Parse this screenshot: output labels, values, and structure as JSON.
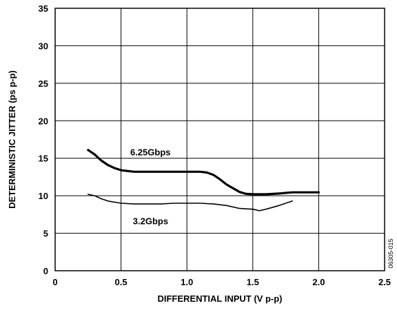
{
  "chart_data": {
    "type": "line",
    "title": "",
    "xlabel": "DIFFERENTIAL INPUT (V p-p)",
    "ylabel": "DETERMINISTIC JITTER (ps p-p)",
    "xlim": [
      0,
      2.5
    ],
    "ylim": [
      0,
      35
    ],
    "x_ticks": [
      "0",
      "0.5",
      "1.0",
      "1.5",
      "2.0",
      "2.5"
    ],
    "y_ticks": [
      "0",
      "5",
      "10",
      "15",
      "20",
      "25",
      "30",
      "35"
    ],
    "grid": true,
    "legend": "none",
    "series": [
      {
        "name": "6.25Gbps",
        "color": "#000000",
        "points": [
          [
            0.25,
            16.1
          ],
          [
            0.3,
            15.5
          ],
          [
            0.35,
            14.7
          ],
          [
            0.4,
            14.1
          ],
          [
            0.45,
            13.7
          ],
          [
            0.5,
            13.4
          ],
          [
            0.6,
            13.2
          ],
          [
            0.7,
            13.2
          ],
          [
            0.8,
            13.2
          ],
          [
            0.9,
            13.2
          ],
          [
            1.0,
            13.2
          ],
          [
            1.1,
            13.2
          ],
          [
            1.15,
            13.1
          ],
          [
            1.2,
            12.8
          ],
          [
            1.25,
            12.2
          ],
          [
            1.3,
            11.5
          ],
          [
            1.35,
            11.0
          ],
          [
            1.4,
            10.5
          ],
          [
            1.45,
            10.25
          ],
          [
            1.5,
            10.2
          ],
          [
            1.6,
            10.2
          ],
          [
            1.7,
            10.3
          ],
          [
            1.8,
            10.45
          ],
          [
            1.9,
            10.45
          ],
          [
            2.0,
            10.45
          ]
        ]
      },
      {
        "name": "3.2Gbps",
        "color": "#000000",
        "points": [
          [
            0.25,
            10.2
          ],
          [
            0.3,
            10.0
          ],
          [
            0.35,
            9.6
          ],
          [
            0.4,
            9.3
          ],
          [
            0.5,
            9.0
          ],
          [
            0.6,
            8.9
          ],
          [
            0.7,
            8.9
          ],
          [
            0.8,
            8.9
          ],
          [
            0.9,
            9.0
          ],
          [
            1.0,
            9.0
          ],
          [
            1.1,
            9.0
          ],
          [
            1.2,
            8.9
          ],
          [
            1.3,
            8.7
          ],
          [
            1.4,
            8.3
          ],
          [
            1.5,
            8.2
          ],
          [
            1.55,
            8.0
          ],
          [
            1.6,
            8.2
          ],
          [
            1.7,
            8.7
          ],
          [
            1.8,
            9.3
          ]
        ]
      }
    ],
    "annotations": [
      "6.25Gbps",
      "3.2Gbps"
    ]
  },
  "figure_id": "06305-015"
}
